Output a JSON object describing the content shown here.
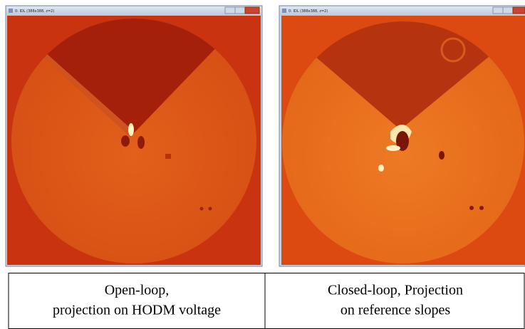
{
  "windows": [
    {
      "title": "0: IDL (388x388, z=2)"
    },
    {
      "title": "0: IDL (388x388, z=2)"
    }
  ],
  "table": {
    "cells": [
      {
        "lines": [
          "Open-loop,",
          "projection on HODM voltage"
        ]
      },
      {
        "lines": [
          "Closed-loop, Projection",
          "on reference slopes"
        ]
      }
    ]
  }
}
